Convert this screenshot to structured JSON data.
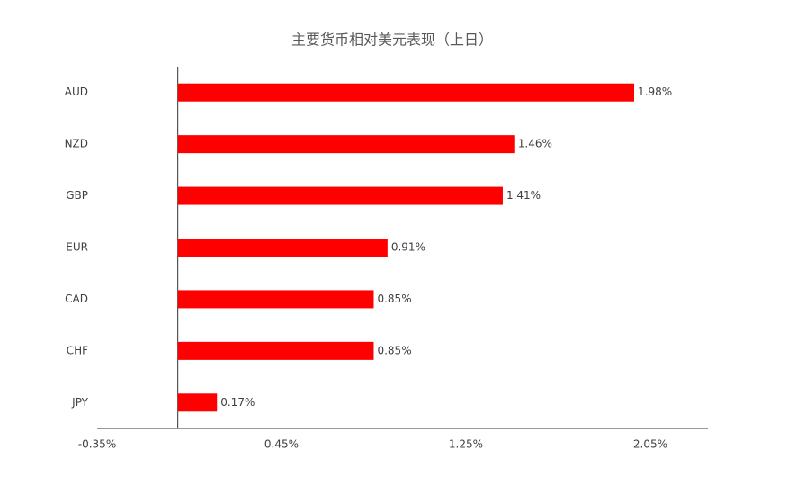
{
  "chart_data": {
    "type": "bar",
    "orientation": "horizontal",
    "title": "主要货币相对美元表现（上日）",
    "categories": [
      "AUD",
      "NZD",
      "GBP",
      "EUR",
      "CAD",
      "CHF",
      "JPY"
    ],
    "values": [
      1.98,
      1.46,
      1.41,
      0.91,
      0.85,
      0.85,
      0.17
    ],
    "value_labels": [
      "1.98%",
      "1.46%",
      "1.41%",
      "0.91%",
      "0.85%",
      "0.85%",
      "0.17%"
    ],
    "color": "#ff0000",
    "xlim": [
      -0.35,
      2.3
    ],
    "xticks": [
      {
        "value": -0.35,
        "label": "-0.35%"
      },
      {
        "value": 0.45,
        "label": "0.45%"
      },
      {
        "value": 1.25,
        "label": "1.25%"
      },
      {
        "value": 2.05,
        "label": "2.05%"
      }
    ],
    "grid": false
  }
}
